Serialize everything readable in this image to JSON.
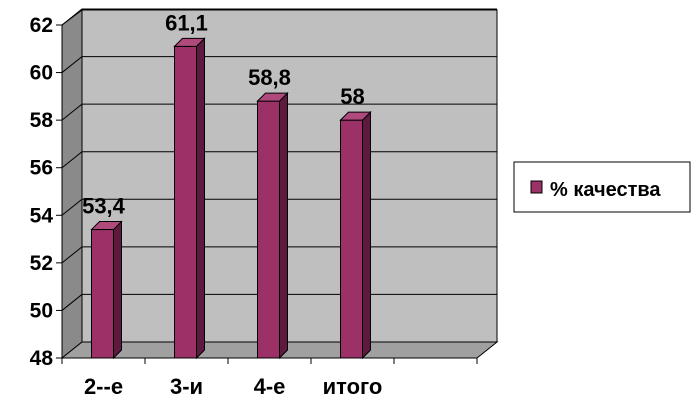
{
  "chart_data": {
    "type": "bar",
    "categories": [
      "2--е",
      "3-и",
      "4-е",
      "итого"
    ],
    "series": [
      {
        "name": "% качества",
        "values": [
          53.4,
          61.1,
          58.8,
          58
        ]
      }
    ],
    "data_labels": [
      "53,4",
      "61,1",
      "58,8",
      "58"
    ],
    "y_ticks": [
      "48",
      "50",
      "52",
      "54",
      "56",
      "58",
      "60",
      "62"
    ],
    "ylim": [
      48,
      62
    ],
    "grid": true,
    "legend_position": "right",
    "colors": {
      "bar_front": "#9b3166",
      "bar_side": "#5e1a3e",
      "bar_top": "#b04a7d",
      "plot_wall": "#bfbfbf",
      "plot_side": "#8a8a8a"
    }
  }
}
